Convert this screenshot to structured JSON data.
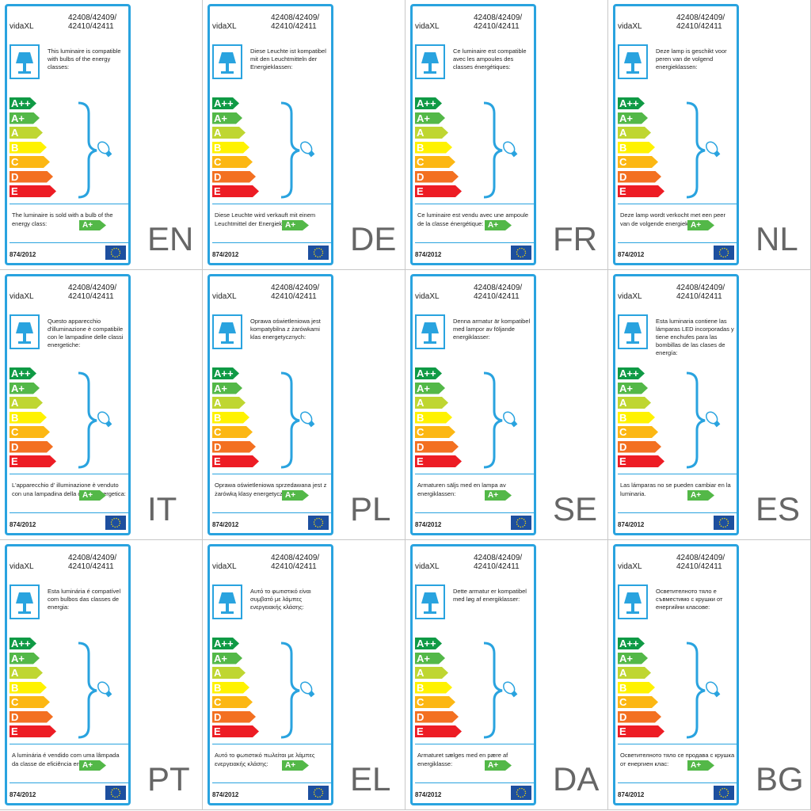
{
  "brand": "vidaXL",
  "model_lines": [
    "42408/42409/",
    "42410/42411"
  ],
  "classes": [
    "A++",
    "A+",
    "A",
    "B",
    "C",
    "D",
    "E"
  ],
  "sold_class": "A+",
  "regulation": "874/2012",
  "labels": [
    {
      "lang": "EN",
      "compatible": "This luminaire is compatible with bulbs of the energy classes:",
      "sold": "The luminaire is sold with a bulb of the energy class:"
    },
    {
      "lang": "DE",
      "compatible": "Diese Leuchte ist kompatibel mit den Leuchtmitteln der Energieklassen:",
      "sold": "Diese Leuchte wird verkauft mit einem Leuchtmittel der Energieklasse:"
    },
    {
      "lang": "FR",
      "compatible": "Ce luminaire est compatible avec les ampoules des classes énergétiques:",
      "sold": "Ce luminaire est vendu avec une ampoule de la classe énergétique:"
    },
    {
      "lang": "NL",
      "compatible": "Deze lamp is geschikt voor peren van de volgend energieklassen:",
      "sold": "Deze lamp wordt verkocht met een peer van de volgende energieklasse:"
    },
    {
      "lang": "IT",
      "compatible": "Questo apparecchio d'illuminazione è compatibile con le lampadine delle classi energetiche:",
      "sold": "L'apparecchio d'  illuminazione è venduto con una lampadina della classe energetica:"
    },
    {
      "lang": "PL",
      "compatible": "Oprawa oświetleniowa jest kompatybilna z żarówkami klas energetycznych:",
      "sold": "Oprawa oświetleniowa sprzedawana jest z żarówką klasy energetycznej:"
    },
    {
      "lang": "SE",
      "compatible": "Denna armatur är kompatibel med lampor av följande energiklasser:",
      "sold": "Armaturen säljs med en lampa av energiklassen:"
    },
    {
      "lang": "ES",
      "compatible": "Esta luminaria contiene las lámparas LED incorporadas y tiene enchufes para las bombillas de las clases de energía:",
      "sold": "Las lámparas no se pueden cambiar en la luminaria."
    },
    {
      "lang": "PT",
      "compatible": "Esta luminária é compatível com bulbos das classes de energia:",
      "sold": "A luminária é vendido com uma lâmpada da classe de eficiência energética:"
    },
    {
      "lang": "EL",
      "compatible": "Αυτό το φωτιστικό είναι συμβατό με λάμπες ενεργειακής κλάσης:",
      "sold": "Αυτό το φωτιστικό πωλείται με λάμπες ενεργειακής κλάσης:"
    },
    {
      "lang": "DA",
      "compatible": "Dette armatur er kompatibel med løg af energiklasser:",
      "sold": "Armaturet sælges med en pære af energiklasse:"
    },
    {
      "lang": "BG",
      "compatible": "Осветителното тяло е съвместимо с крушки от енергийни класове:",
      "sold": "Осветителното тяло се продава с крушка от енергиен клас:"
    }
  ]
}
